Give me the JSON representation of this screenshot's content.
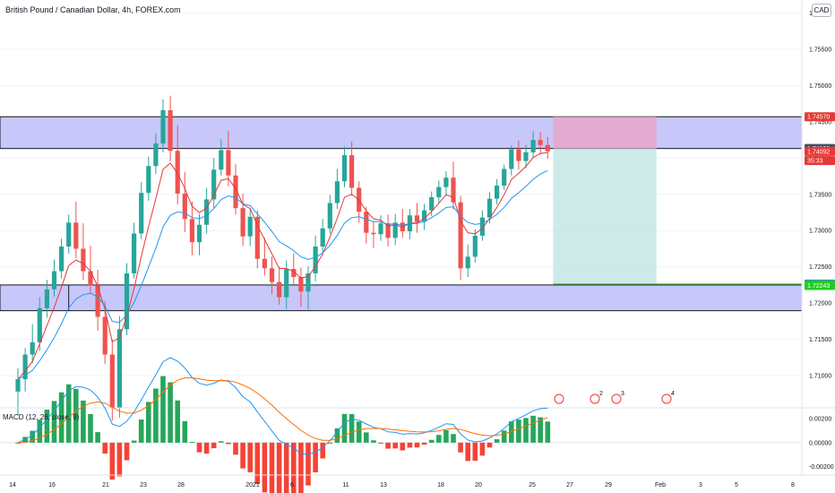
{
  "chart_data": {
    "type": "candlestick",
    "title": "British Pound / Canadian Dollar, 4h, FOREX.com",
    "currency": "CAD",
    "price_axis": {
      "ticks": [
        "1.76000",
        "1.75500",
        "1.75000",
        "1.74500",
        "1.74000",
        "1.73500",
        "1.73000",
        "1.72500",
        "1.72000",
        "1.71500",
        "1.71000"
      ],
      "values": [
        1.76,
        1.755,
        1.75,
        1.745,
        1.74,
        1.735,
        1.73,
        1.725,
        1.72,
        1.715,
        1.71
      ],
      "range": [
        1.7058,
        1.7618
      ]
    },
    "x_axis": {
      "labels": [
        "14",
        "16",
        "21",
        "23",
        "28",
        "2021",
        "6",
        "11",
        "13",
        "18",
        "20",
        "25",
        "27",
        "29",
        "Feb",
        "3",
        "5",
        "8"
      ]
    },
    "price_tags": [
      {
        "label": "1.74570",
        "value": 1.7457,
        "color": "#e53935"
      },
      {
        "label": "1.74132",
        "value": 1.74132,
        "color": "#4a4f5c"
      },
      {
        "label": "1.74092",
        "value": 1.74092,
        "color": "#e53935"
      },
      {
        "label": "35:33",
        "value": 1.73965,
        "color": "#e53935"
      },
      {
        "label": "1.72263",
        "value": 1.72263,
        "color": "#26a69a"
      },
      {
        "label": "1.72243",
        "value": 1.72243,
        "color": "#22cc22"
      }
    ],
    "zones": [
      {
        "name": "resistance",
        "from": 1.7457,
        "to": 1.74132,
        "color": "#c7c7fa"
      },
      {
        "name": "support",
        "from": 1.7225,
        "to": 1.71895,
        "color": "#c7c7fa"
      }
    ],
    "position": {
      "entry": 1.74132,
      "stop": 1.7457,
      "target": 1.72263,
      "from_bar": 74,
      "to_bar": 88,
      "stop_color": "#e8a4c4",
      "target_color": "#b2dfdb"
    },
    "ohlc": [
      [
        1.7078,
        1.711,
        1.7045,
        1.7095
      ],
      [
        1.7095,
        1.7138,
        1.7078,
        1.7129
      ],
      [
        1.7129,
        1.7171,
        1.7117,
        1.7146
      ],
      [
        1.7146,
        1.7208,
        1.7134,
        1.7193
      ],
      [
        1.7193,
        1.7232,
        1.718,
        1.7219
      ],
      [
        1.7219,
        1.726,
        1.7209,
        1.7244
      ],
      [
        1.7244,
        1.7289,
        1.7234,
        1.7278
      ],
      [
        1.7278,
        1.7322,
        1.7268,
        1.7311
      ],
      [
        1.7311,
        1.734,
        1.7262,
        1.7275
      ],
      [
        1.7275,
        1.731,
        1.7232,
        1.7244
      ],
      [
        1.7244,
        1.7279,
        1.7213,
        1.7224
      ],
      [
        1.7224,
        1.7246,
        1.7162,
        1.7181
      ],
      [
        1.7181,
        1.7203,
        1.7116,
        1.7129
      ],
      [
        1.7129,
        1.715,
        1.7038,
        1.7056
      ],
      [
        1.7056,
        1.7182,
        1.7042,
        1.7164
      ],
      [
        1.7164,
        1.7255,
        1.7156,
        1.7241
      ],
      [
        1.7241,
        1.7311,
        1.7234,
        1.7296
      ],
      [
        1.7296,
        1.7367,
        1.7288,
        1.7352
      ],
      [
        1.7352,
        1.7402,
        1.7341,
        1.7389
      ],
      [
        1.7389,
        1.7434,
        1.7378,
        1.742
      ],
      [
        1.742,
        1.7481,
        1.7408,
        1.7466
      ],
      [
        1.7466,
        1.7486,
        1.7396,
        1.741
      ],
      [
        1.741,
        1.7445,
        1.7336,
        1.7351
      ],
      [
        1.7351,
        1.7381,
        1.7298,
        1.7316
      ],
      [
        1.7316,
        1.734,
        1.7266,
        1.7284
      ],
      [
        1.7284,
        1.7323,
        1.7266,
        1.7308
      ],
      [
        1.7308,
        1.7359,
        1.7296,
        1.7343
      ],
      [
        1.7343,
        1.74,
        1.7331,
        1.7384
      ],
      [
        1.7384,
        1.7426,
        1.7376,
        1.7411
      ],
      [
        1.7411,
        1.7437,
        1.7361,
        1.7376
      ],
      [
        1.7376,
        1.7392,
        1.7322,
        1.7331
      ],
      [
        1.7331,
        1.7351,
        1.7279,
        1.7292
      ],
      [
        1.7292,
        1.7331,
        1.7279,
        1.7319
      ],
      [
        1.7319,
        1.7328,
        1.7248,
        1.7261
      ],
      [
        1.7261,
        1.729,
        1.7238,
        1.7248
      ],
      [
        1.7248,
        1.7264,
        1.7212,
        1.7229
      ],
      [
        1.7229,
        1.725,
        1.7198,
        1.7208
      ],
      [
        1.7208,
        1.7259,
        1.7192,
        1.7247
      ],
      [
        1.7247,
        1.7269,
        1.7226,
        1.7236
      ],
      [
        1.7236,
        1.7249,
        1.7195,
        1.7216
      ],
      [
        1.7216,
        1.7251,
        1.7191,
        1.7241
      ],
      [
        1.7241,
        1.7293,
        1.723,
        1.7278
      ],
      [
        1.7278,
        1.7316,
        1.727,
        1.7303
      ],
      [
        1.7303,
        1.7349,
        1.7296,
        1.7338
      ],
      [
        1.7338,
        1.7385,
        1.733,
        1.7368
      ],
      [
        1.7368,
        1.7416,
        1.736,
        1.7404
      ],
      [
        1.7404,
        1.7423,
        1.7348,
        1.7359
      ],
      [
        1.7359,
        1.7368,
        1.7311,
        1.7326
      ],
      [
        1.7326,
        1.7333,
        1.7282,
        1.7297
      ],
      [
        1.7297,
        1.7313,
        1.7276,
        1.7295
      ],
      [
        1.7295,
        1.7321,
        1.7286,
        1.731
      ],
      [
        1.731,
        1.7322,
        1.7278,
        1.729
      ],
      [
        1.729,
        1.7323,
        1.728,
        1.7311
      ],
      [
        1.7311,
        1.733,
        1.729,
        1.7299
      ],
      [
        1.7299,
        1.733,
        1.7288,
        1.7321
      ],
      [
        1.7321,
        1.7338,
        1.7297,
        1.7312
      ],
      [
        1.7312,
        1.7337,
        1.7301,
        1.7328
      ],
      [
        1.7328,
        1.7354,
        1.732,
        1.7346
      ],
      [
        1.7346,
        1.7369,
        1.7338,
        1.736
      ],
      [
        1.736,
        1.7382,
        1.7348,
        1.7373
      ],
      [
        1.7373,
        1.7395,
        1.7329,
        1.7339
      ],
      [
        1.7339,
        1.7348,
        1.7232,
        1.7248
      ],
      [
        1.7248,
        1.7281,
        1.7236,
        1.7264
      ],
      [
        1.7264,
        1.7302,
        1.7256,
        1.7293
      ],
      [
        1.7293,
        1.7328,
        1.7286,
        1.7318
      ],
      [
        1.7318,
        1.7353,
        1.731,
        1.7344
      ],
      [
        1.7344,
        1.7371,
        1.7336,
        1.7362
      ],
      [
        1.7362,
        1.7391,
        1.7356,
        1.7385
      ],
      [
        1.7385,
        1.7417,
        1.7376,
        1.7412
      ],
      [
        1.7412,
        1.7424,
        1.7384,
        1.7396
      ],
      [
        1.7396,
        1.7418,
        1.7386,
        1.7408
      ],
      [
        1.7408,
        1.7437,
        1.74,
        1.7425
      ],
      [
        1.7425,
        1.7436,
        1.7405,
        1.7418
      ],
      [
        1.7418,
        1.7429,
        1.7399,
        1.74092
      ]
    ],
    "indicators": [
      {
        "name": "EMA (red)",
        "color": "#e53935"
      },
      {
        "name": "EMA (blue)",
        "color": "#2196f3"
      }
    ],
    "macd": {
      "label": "MACD (12, 26, close, 9)",
      "ticks": [
        "0.00200",
        "0.00000",
        "-0.00200"
      ],
      "tick_values": [
        0.002,
        0.0,
        -0.002
      ],
      "range": [
        -0.0027,
        0.0029
      ],
      "macd_color": "#2196f3",
      "signal_color": "#ff6d00",
      "hist_pos_color": "#26a65b",
      "hist_neg_color": "#f44336",
      "event_markers": [
        "2",
        "3",
        "4"
      ]
    }
  }
}
